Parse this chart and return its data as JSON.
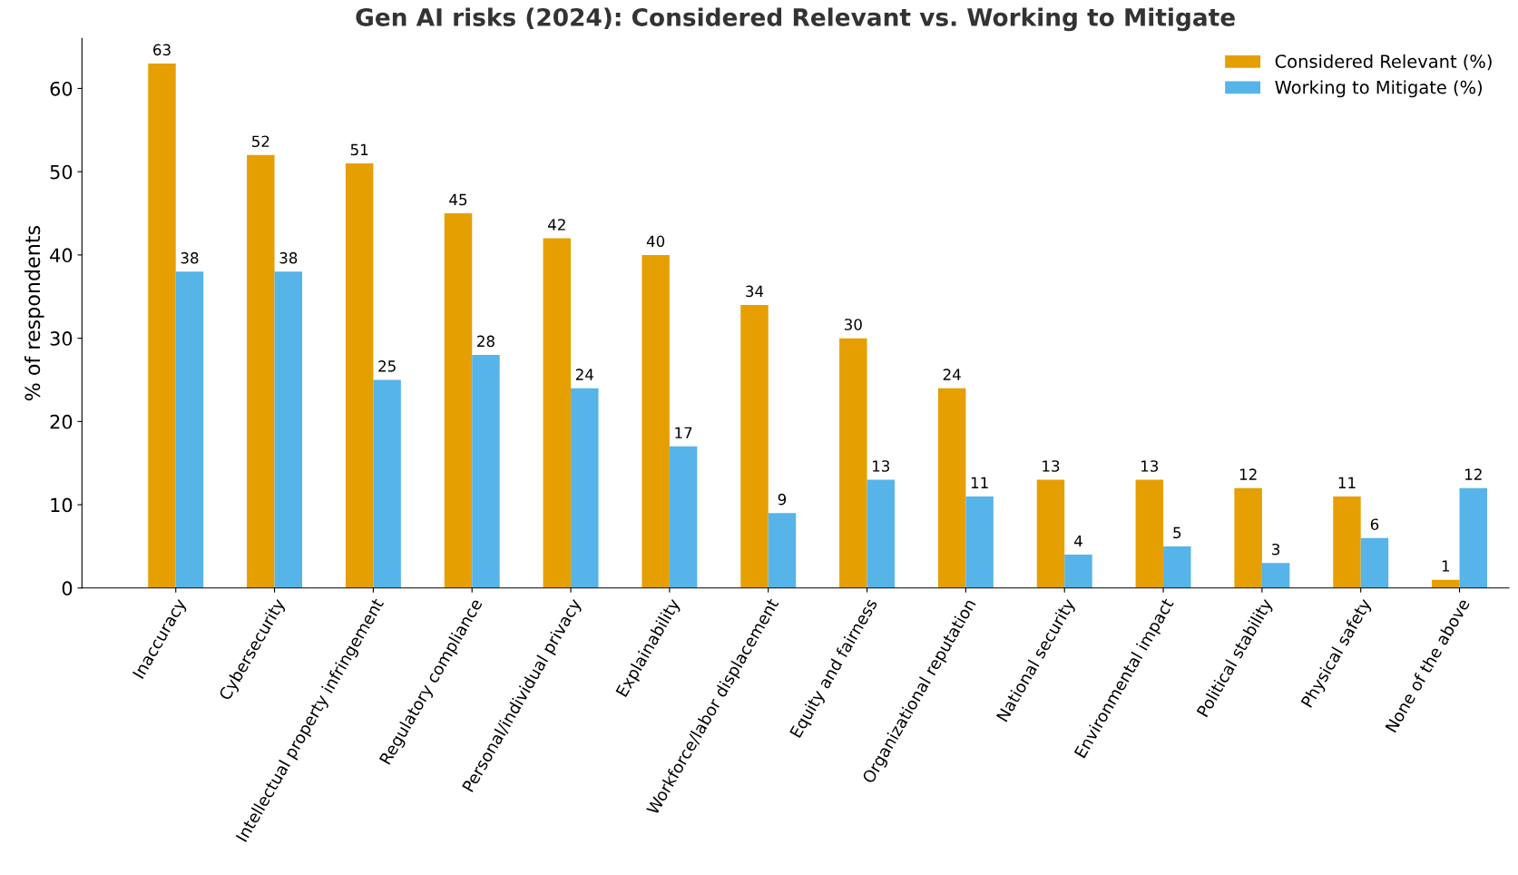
{
  "chart_data": {
    "type": "bar",
    "title": "Gen AI risks (2024): Considered Relevant vs. Working to Mitigate",
    "ylabel": "% of respondents",
    "categories": [
      "Inaccuracy",
      "Cybersecurity",
      "Intellectual property infringement",
      "Regulatory compliance",
      "Personal/individual privacy",
      "Explainability",
      "Workforce/labor displacement",
      "Equity and fairness",
      "Organizational reputation",
      "National security",
      "Environmental impact",
      "Political stability",
      "Physical safety",
      "None of the above"
    ],
    "series": [
      {
        "name": "Considered Relevant (%)",
        "color": "#e69f00",
        "values": [
          63,
          52,
          51,
          45,
          42,
          40,
          34,
          30,
          24,
          13,
          13,
          12,
          11,
          1
        ]
      },
      {
        "name": "Working to Mitigate (%)",
        "color": "#56b4e9",
        "values": [
          38,
          38,
          25,
          28,
          24,
          17,
          9,
          13,
          11,
          4,
          5,
          3,
          6,
          12
        ]
      }
    ],
    "ylim": [
      0,
      66
    ],
    "yticks": [
      0,
      10,
      20,
      30,
      40,
      50,
      60
    ],
    "data_labels": true,
    "legend": "top right",
    "grid": false
  }
}
